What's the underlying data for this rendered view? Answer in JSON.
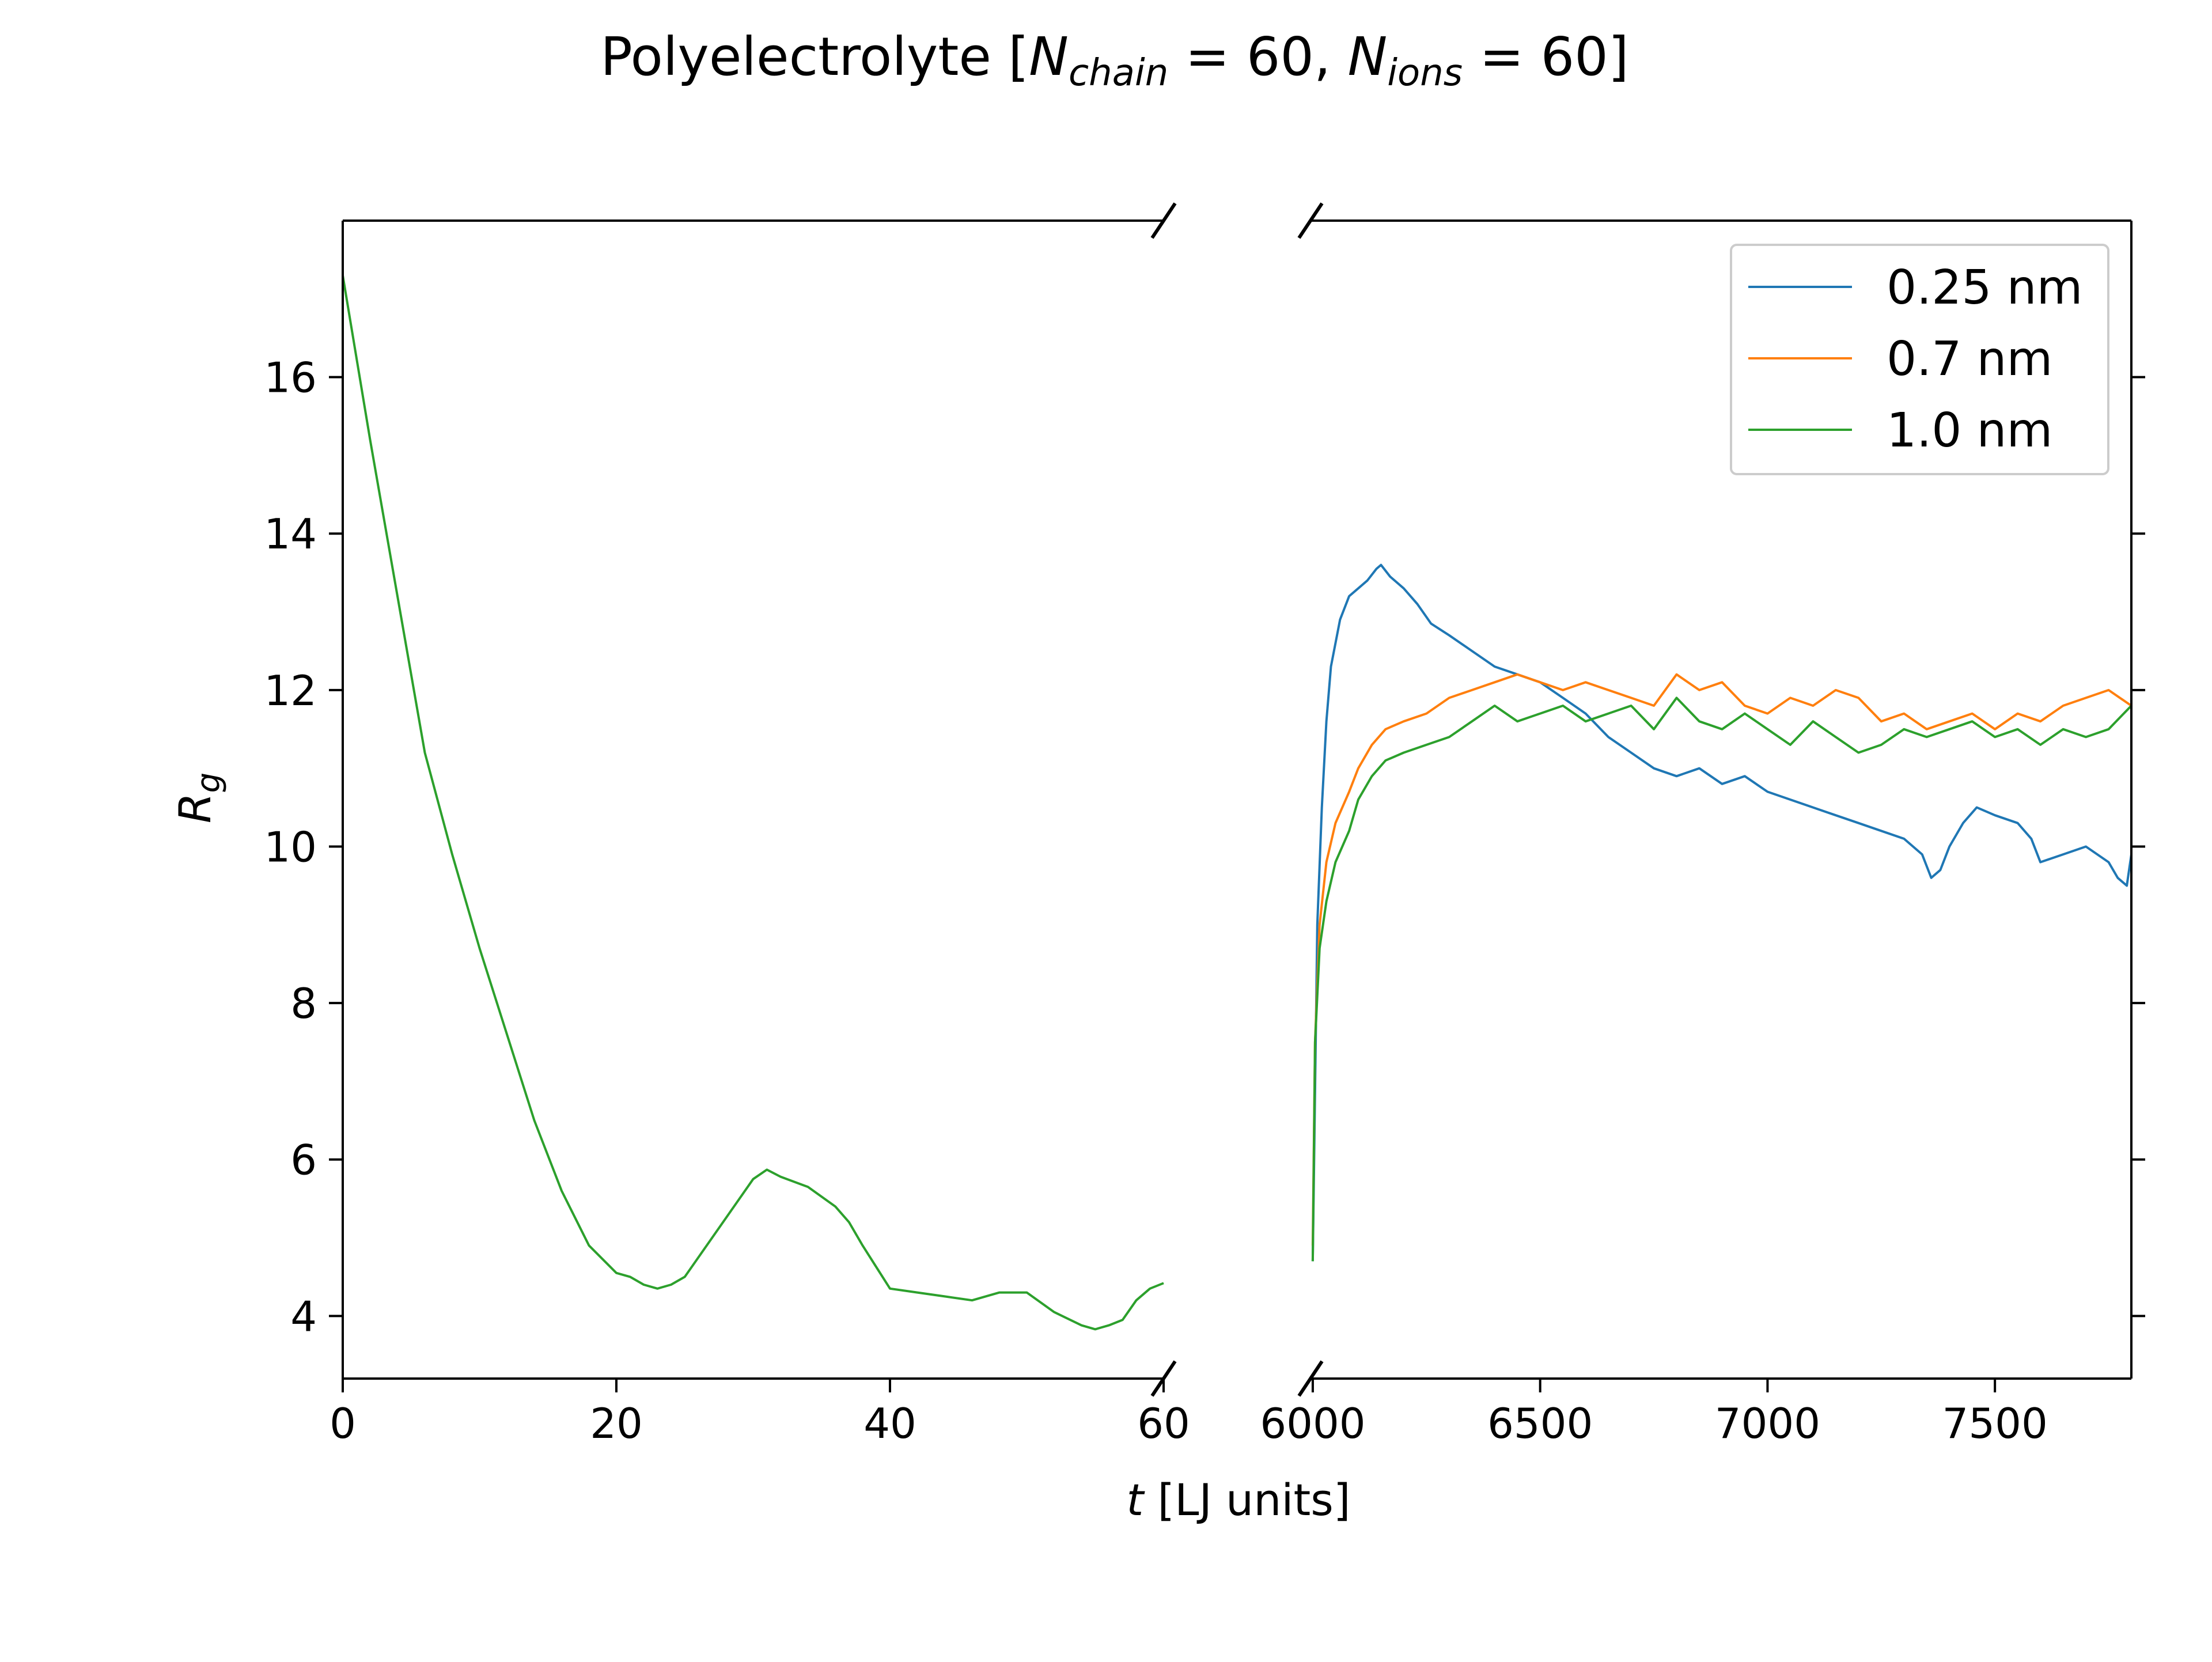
{
  "chart_data": {
    "type": "line",
    "title": {
      "prefix": "Polyelectrolyte [",
      "n1_symbol": "N",
      "n1_sub": "chain",
      "n1_rest": " = 60, ",
      "n2_symbol": "N",
      "n2_sub": "ions",
      "n2_rest": " = 60]"
    },
    "ylabel": {
      "symbol": "R",
      "sub": "g"
    },
    "xlabel": {
      "symbol": "t",
      "rest": " [LJ units]"
    },
    "broken_x_axis": true,
    "left_panel": {
      "xlim": [
        0,
        60
      ],
      "xticks": [
        0,
        20,
        40,
        60
      ],
      "xtick_labels": [
        "0",
        "20",
        "40",
        "60"
      ]
    },
    "right_panel": {
      "xlim": [
        5995,
        7800
      ],
      "xticks": [
        6000,
        6500,
        7000,
        7500
      ],
      "xtick_labels": [
        "6000",
        "6500",
        "7000",
        "7500"
      ]
    },
    "ylim": [
      3.2,
      18.0
    ],
    "yticks": [
      4,
      6,
      8,
      10,
      12,
      14,
      16
    ],
    "ytick_labels": [
      "4",
      "6",
      "8",
      "10",
      "12",
      "14",
      "16"
    ],
    "grid": false,
    "legend": {
      "placement": "upper right",
      "entries": [
        "0.25 nm",
        "0.7 nm",
        "1.0 nm"
      ]
    },
    "series": [
      {
        "name": "0.25 nm",
        "color": "#1f77b4",
        "right": {
          "x": [
            6000,
            6010,
            6020,
            6030,
            6040,
            6060,
            6080,
            6100,
            6120,
            6140,
            6150,
            6170,
            6200,
            6230,
            6260,
            6300,
            6350,
            6400,
            6450,
            6500,
            6550,
            6600,
            6650,
            6700,
            6750,
            6800,
            6850,
            6900,
            6950,
            7000,
            7050,
            7100,
            7150,
            7200,
            7250,
            7300,
            7340,
            7360,
            7380,
            7400,
            7430,
            7460,
            7500,
            7550,
            7580,
            7600,
            7650,
            7700,
            7750,
            7770,
            7790,
            7800
          ],
          "y": [
            4.7,
            9.0,
            10.5,
            11.6,
            12.3,
            12.9,
            13.2,
            13.3,
            13.4,
            13.55,
            13.6,
            13.45,
            13.3,
            13.1,
            12.85,
            12.7,
            12.5,
            12.3,
            12.2,
            12.1,
            11.9,
            11.7,
            11.4,
            11.2,
            11.0,
            10.9,
            11.0,
            10.8,
            10.9,
            10.7,
            10.6,
            10.5,
            10.4,
            10.3,
            10.2,
            10.1,
            9.9,
            9.6,
            9.7,
            10.0,
            10.3,
            10.5,
            10.4,
            10.3,
            10.1,
            9.8,
            9.9,
            10.0,
            9.8,
            9.6,
            9.5,
            9.9
          ]
        }
      },
      {
        "name": "0.7 nm",
        "color": "#ff7f0e",
        "right": {
          "x": [
            6000,
            6005,
            6015,
            6030,
            6050,
            6080,
            6100,
            6130,
            6160,
            6200,
            6250,
            6300,
            6350,
            6400,
            6450,
            6500,
            6550,
            6600,
            6650,
            6700,
            6750,
            6800,
            6850,
            6900,
            6950,
            7000,
            7050,
            7100,
            7150,
            7200,
            7250,
            7300,
            7350,
            7400,
            7450,
            7500,
            7550,
            7600,
            7650,
            7700,
            7750,
            7800
          ],
          "y": [
            4.9,
            7.5,
            9.0,
            9.8,
            10.3,
            10.7,
            11.0,
            11.3,
            11.5,
            11.6,
            11.7,
            11.9,
            12.0,
            12.1,
            12.2,
            12.1,
            12.0,
            12.1,
            12.0,
            11.9,
            11.8,
            12.2,
            12.0,
            12.1,
            11.8,
            11.7,
            11.9,
            11.8,
            12.0,
            11.9,
            11.6,
            11.7,
            11.5,
            11.6,
            11.7,
            11.5,
            11.7,
            11.6,
            11.8,
            11.9,
            12.0,
            11.8
          ]
        }
      },
      {
        "name": "1.0 nm",
        "color": "#2ca02c",
        "left": {
          "x": [
            0,
            2,
            4,
            6,
            8,
            10,
            12,
            14,
            16,
            18,
            20,
            21,
            22,
            23,
            24,
            25,
            26,
            28,
            30,
            31,
            32,
            34,
            36,
            37,
            38,
            40,
            42,
            44,
            46,
            48,
            50,
            52,
            54,
            55,
            56,
            57,
            58,
            59,
            60
          ],
          "y": [
            17.3,
            15.2,
            13.2,
            11.2,
            9.9,
            8.7,
            7.6,
            6.5,
            5.6,
            4.9,
            4.55,
            4.5,
            4.4,
            4.35,
            4.4,
            4.5,
            4.75,
            5.25,
            5.75,
            5.87,
            5.78,
            5.65,
            5.4,
            5.2,
            4.9,
            4.35,
            4.3,
            4.25,
            4.2,
            4.3,
            4.3,
            4.05,
            3.88,
            3.83,
            3.88,
            3.95,
            4.2,
            4.35,
            4.42
          ]
        },
        "right": {
          "x": [
            6000,
            6005,
            6015,
            6030,
            6050,
            6080,
            6100,
            6130,
            6160,
            6200,
            6250,
            6300,
            6350,
            6400,
            6450,
            6500,
            6550,
            6600,
            6650,
            6700,
            6750,
            6800,
            6850,
            6900,
            6950,
            7000,
            7050,
            7100,
            7150,
            7200,
            7250,
            7300,
            7350,
            7400,
            7450,
            7500,
            7550,
            7600,
            7650,
            7700,
            7750,
            7800
          ],
          "y": [
            4.7,
            7.5,
            8.7,
            9.3,
            9.8,
            10.2,
            10.6,
            10.9,
            11.1,
            11.2,
            11.3,
            11.4,
            11.6,
            11.8,
            11.6,
            11.7,
            11.8,
            11.6,
            11.7,
            11.8,
            11.5,
            11.9,
            11.6,
            11.5,
            11.7,
            11.5,
            11.3,
            11.6,
            11.4,
            11.2,
            11.3,
            11.5,
            11.4,
            11.5,
            11.6,
            11.4,
            11.5,
            11.3,
            11.5,
            11.4,
            11.5,
            11.8
          ]
        }
      }
    ]
  }
}
